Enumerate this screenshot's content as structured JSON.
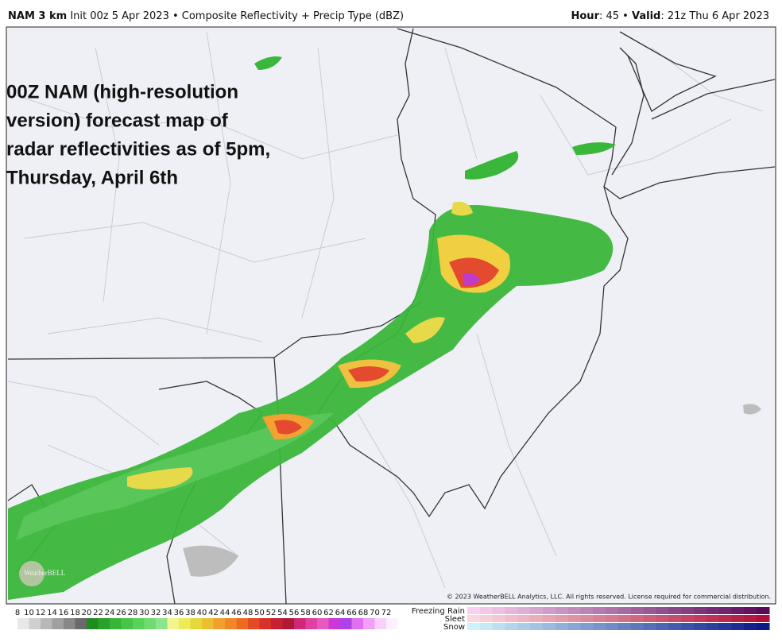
{
  "header": {
    "model": "NAM 3 km",
    "run": "Init 00z 5 Apr 2023 • Composite Reflectivity + Precip Type (dBZ)",
    "hour_label": "Hour",
    "hour": ": 45 • ",
    "valid_label": "Valid",
    "valid": ": 21z Thu 6 Apr 2023"
  },
  "annotation": {
    "lines": [
      "00Z NAM (high-resolution",
      "version) forecast map of",
      "radar reflectivities as of 5pm,",
      "Thursday, April 6th"
    ]
  },
  "copyright": "© 2023 WeatherBELL Analytics, LLC. All rights reserved. License required for commercial distribution.",
  "watermark": "WeatherBELL",
  "legend": {
    "ticks": [
      8,
      10,
      12,
      14,
      16,
      18,
      20,
      22,
      24,
      26,
      28,
      30,
      32,
      34,
      36,
      38,
      40,
      42,
      44,
      46,
      48,
      50,
      52,
      54,
      56,
      58,
      60,
      62,
      64,
      66,
      68,
      70,
      72
    ],
    "precip_types": [
      "Freezing Rain",
      "Sleet",
      "Snow"
    ]
  }
}
